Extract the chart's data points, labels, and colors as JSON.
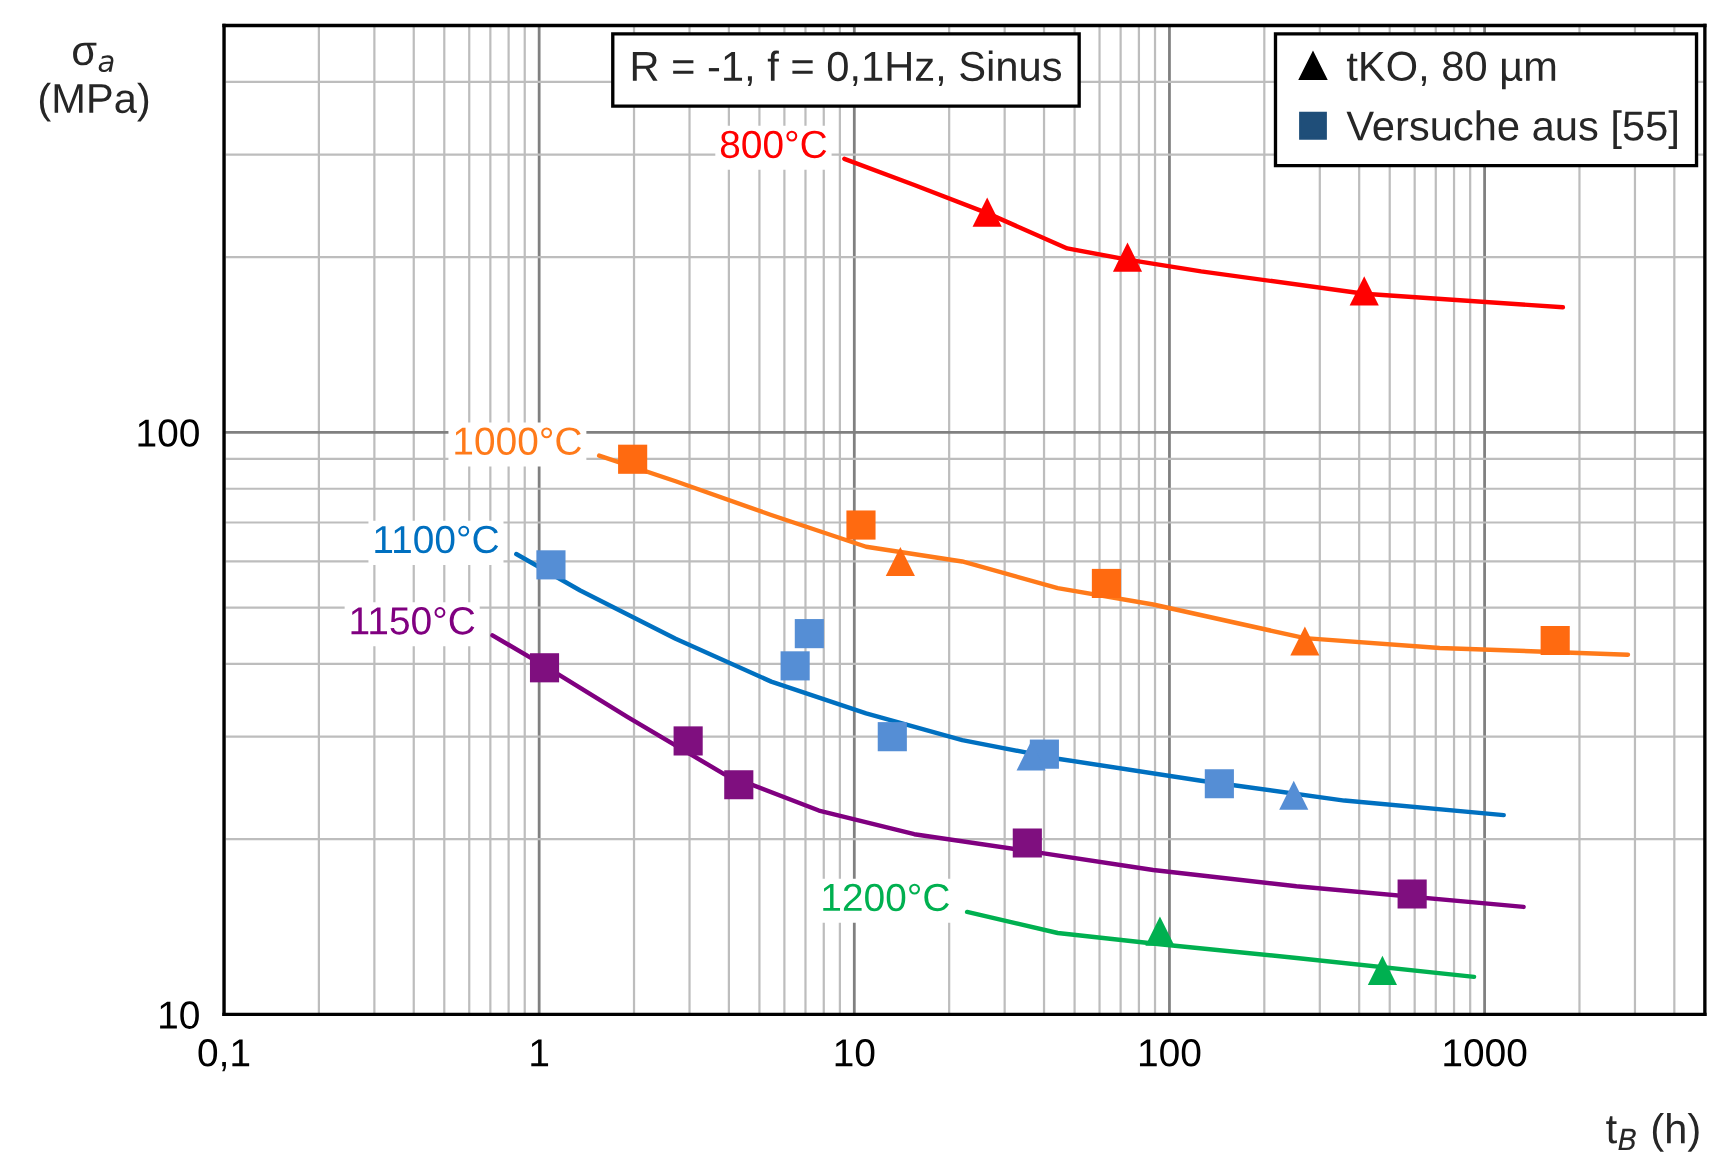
{
  "chart_data": {
    "type": "line",
    "ylabel": "σ$_{a}$\n(MPa)",
    "xlabel": "t$_{B}$ (h)",
    "log": "xy",
    "grid": true,
    "xlim": [
      0.1,
      5000
    ],
    "xticks": [
      {
        "value": 0.1,
        "label": "0,1"
      },
      1,
      10,
      100,
      1000
    ],
    "ylim": [
      10,
      500
    ],
    "yticks": [
      10,
      100
    ],
    "annotations": [
      "R = -1, f = 0,1Hz, Sinus",
      "tKO, 80 µm",
      "Versuche aus [55]"
    ],
    "series": [
      {
        "name": "800°C",
        "marker": "none",
        "color": "#ff0000",
        "x": [
          9.3,
          15.5,
          26.4,
          47.4,
          73.6,
          126,
          415,
          1772
        ],
        "values": [
          295,
          266,
          238,
          207,
          198,
          189,
          173,
          164
        ]
      },
      {
        "name": "1000°C",
        "marker": "none",
        "color": "#ff7a1a",
        "x": [
          1.55,
          2.71,
          5.45,
          10.9,
          22,
          44.2,
          88.8,
          269,
          720,
          2850
        ],
        "values": [
          91.2,
          82.4,
          72.1,
          63.6,
          60,
          54,
          50.6,
          44.3,
          42.6,
          41.5
        ]
      },
      {
        "name": "1100°C",
        "marker": "none",
        "color": "#0070c0",
        "x": [
          0.846,
          1.35,
          2.71,
          5.45,
          10.9,
          22,
          44.2,
          126,
          359,
          1150
        ],
        "values": [
          61.8,
          53.5,
          44.2,
          37.3,
          32.9,
          29.6,
          27.5,
          25.2,
          23.3,
          22
        ]
      },
      {
        "name": "1150°C",
        "marker": "none",
        "color": "#800080",
        "x": [
          0.711,
          1.04,
          1.91,
          3.85,
          7.72,
          15.5,
          35.4,
          88.8,
          253,
          1330
        ],
        "values": [
          44.8,
          39.7,
          32.4,
          25.9,
          22.4,
          20.4,
          19.1,
          17.7,
          16.6,
          15.3
        ]
      },
      {
        "name": "1200°C",
        "marker": "none",
        "color": "#00b050",
        "x": [
          22.8,
          44.2,
          93.3,
          253,
          926
        ],
        "values": [
          15,
          13.8,
          13.2,
          12.5,
          11.6
        ]
      },
      {
        "type": "scatter",
        "marker": "triangle",
        "x": [
          26.4,
          73.6,
          415,
          14,
          269,
          36.4,
          248,
          93.3,
          474
        ],
        "values": [
          239,
          200,
          175,
          60,
          43.8,
          27.8,
          23.8,
          13.9,
          11.9
        ],
        "colors": [
          "#ff0000",
          "#ff0000",
          "#ff0000",
          "#ff6a10",
          "#ff6a10",
          "#558ed5",
          "#558ed5",
          "#00b050",
          "#00b050"
        ]
      },
      {
        "type": "scatter",
        "marker": "square",
        "x": [
          1.98,
          10.5,
          63.1,
          1675,
          1.09,
          6.49,
          7.2,
          13.2,
          40.1,
          144,
          1.04,
          2.97,
          4.3,
          35.4,
          589
        ],
        "values": [
          89.9,
          69.3,
          55,
          43.9,
          59.2,
          39.7,
          45.1,
          30,
          28,
          24.9,
          39.4,
          29.5,
          24.8,
          19.7,
          16.1
        ],
        "colors": [
          "#ff6a10",
          "#ff6a10",
          "#ff6a10",
          "#ff6a10",
          "#558ed5",
          "#558ed5",
          "#558ed5",
          "#558ed5",
          "#558ed5",
          "#558ed5",
          "#7f0f7f",
          "#7f0f7f",
          "#7f0f7f",
          "#7f0f7f",
          "#7f0f7f"
        ]
      }
    ]
  }
}
